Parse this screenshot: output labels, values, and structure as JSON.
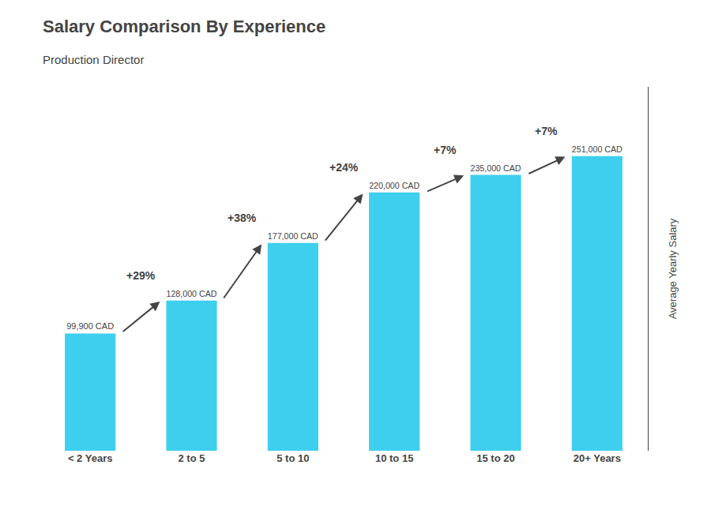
{
  "chart_data": {
    "type": "bar",
    "title": "Salary Comparison By Experience",
    "subtitle": "Production Director",
    "categories": [
      "< 2 Years",
      "2 to 5",
      "5 to 10",
      "10 to 15",
      "15 to 20",
      "20+ Years"
    ],
    "values": [
      99900,
      128000,
      177000,
      220000,
      235000,
      251000
    ],
    "value_labels": [
      "99,900 CAD",
      "128,000 CAD",
      "177,000 CAD",
      "220,000 CAD",
      "235,000 CAD",
      "251,000 CAD"
    ],
    "data_labels": true,
    "color": "#3ecfee",
    "ylabel": "Average Yearly Salary",
    "ylim": [
      0,
      310000
    ],
    "tick_labels": "x",
    "grid": false,
    "annotations": [
      "+29%",
      "+38%",
      "+24%",
      "+7%",
      "+7%"
    ]
  }
}
